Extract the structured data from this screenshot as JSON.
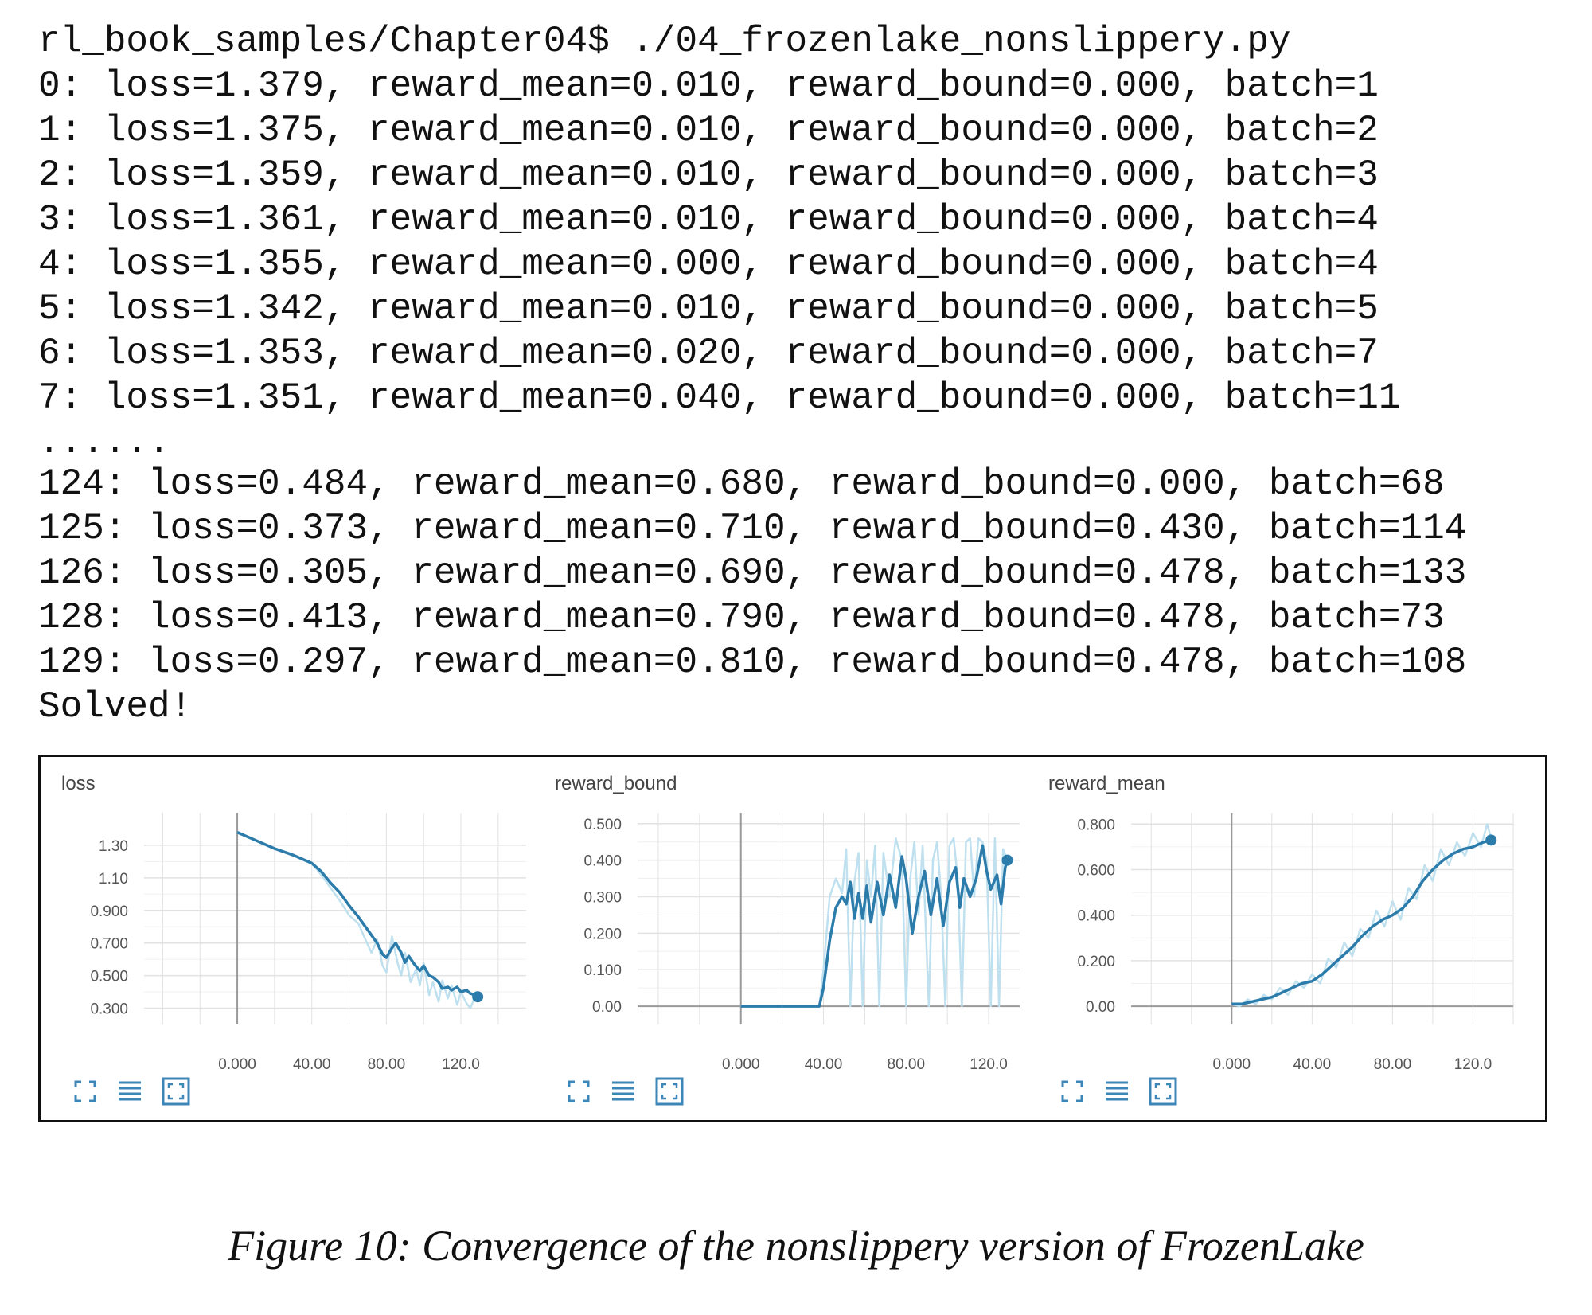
{
  "terminal": {
    "lines": [
      "rl_book_samples/Chapter04$ ./04_frozenlake_nonslippery.py",
      "0: loss=1.379, reward_mean=0.010, reward_bound=0.000, batch=1",
      "1: loss=1.375, reward_mean=0.010, reward_bound=0.000, batch=2",
      "2: loss=1.359, reward_mean=0.010, reward_bound=0.000, batch=3",
      "3: loss=1.361, reward_mean=0.010, reward_bound=0.000, batch=4",
      "4: loss=1.355, reward_mean=0.000, reward_bound=0.000, batch=4",
      "5: loss=1.342, reward_mean=0.010, reward_bound=0.000, batch=5",
      "6: loss=1.353, reward_mean=0.020, reward_bound=0.000, batch=7",
      "7: loss=1.351, reward_mean=0.040, reward_bound=0.000, batch=11",
      "......",
      "124: loss=0.484, reward_mean=0.680, reward_bound=0.000, batch=68",
      "125: loss=0.373, reward_mean=0.710, reward_bound=0.430, batch=114",
      "126: loss=0.305, reward_mean=0.690, reward_bound=0.478, batch=133",
      "128: loss=0.413, reward_mean=0.790, reward_bound=0.478, batch=73",
      "129: loss=0.297, reward_mean=0.810, reward_bound=0.478, batch=108",
      "Solved!"
    ]
  },
  "caption": "Figure 10: Convergence of the nonslippery version of FrozenLake",
  "toolbar": [
    "expand-icon",
    "list-icon",
    "fit-icon"
  ],
  "colors": {
    "line": "#2b7bab",
    "raw": "#bfe0ee",
    "grid": "#e2e2e2",
    "axis": "#9a9a9a"
  },
  "chart_data": [
    {
      "type": "line",
      "title": "loss",
      "xlim": [
        -50,
        155
      ],
      "ylim": [
        0.2,
        1.5
      ],
      "xticks": [
        0,
        40,
        80,
        120
      ],
      "xtick_labels": [
        "0.000",
        "40.00",
        "80.00",
        "120.0"
      ],
      "yticks": [
        0.3,
        0.5,
        0.7,
        0.9,
        1.1,
        1.3
      ],
      "ytick_labels": [
        "0.300",
        "0.500",
        "0.700",
        "0.900",
        "1.10",
        "1.30"
      ],
      "grid": true,
      "series": [
        {
          "x": [
            0,
            10,
            20,
            30,
            40,
            45,
            50,
            55,
            60,
            65,
            70,
            75,
            78,
            80,
            83,
            85,
            88,
            90,
            92,
            95,
            98,
            100,
            103,
            105,
            108,
            110,
            113,
            115,
            118,
            120,
            123,
            125,
            128,
            129
          ],
          "y": [
            1.38,
            1.33,
            1.28,
            1.24,
            1.19,
            1.14,
            1.07,
            1.01,
            0.93,
            0.86,
            0.78,
            0.7,
            0.63,
            0.61,
            0.67,
            0.7,
            0.64,
            0.58,
            0.62,
            0.57,
            0.53,
            0.56,
            0.5,
            0.49,
            0.46,
            0.42,
            0.43,
            0.41,
            0.43,
            0.4,
            0.41,
            0.39,
            0.38,
            0.37
          ]
        },
        {
          "x": [
            0,
            10,
            20,
            30,
            40,
            45,
            50,
            55,
            60,
            65,
            68,
            72,
            75,
            78,
            80,
            83,
            86,
            88,
            90,
            93,
            96,
            98,
            100,
            103,
            105,
            108,
            110,
            113,
            115,
            118,
            120,
            123,
            125,
            128,
            129
          ],
          "y": [
            1.38,
            1.33,
            1.28,
            1.24,
            1.19,
            1.12,
            1.04,
            0.96,
            0.87,
            0.82,
            0.74,
            0.64,
            0.72,
            0.56,
            0.52,
            0.74,
            0.58,
            0.5,
            0.64,
            0.46,
            0.54,
            0.44,
            0.58,
            0.38,
            0.46,
            0.34,
            0.47,
            0.36,
            0.44,
            0.32,
            0.4,
            0.33,
            0.3,
            0.38,
            0.37
          ]
        }
      ]
    },
    {
      "type": "line",
      "title": "reward_bound",
      "xlim": [
        -50,
        135
      ],
      "ylim": [
        -0.05,
        0.53
      ],
      "xticks": [
        0,
        40,
        80,
        120
      ],
      "xtick_labels": [
        "0.000",
        "40.00",
        "80.00",
        "120.0"
      ],
      "yticks": [
        0,
        0.1,
        0.2,
        0.3,
        0.4,
        0.5
      ],
      "ytick_labels": [
        "0.00",
        "0.100",
        "0.200",
        "0.300",
        "0.400",
        "0.500"
      ],
      "grid": true,
      "series": [
        {
          "x": [
            0,
            10,
            20,
            30,
            38,
            40,
            43,
            46,
            49,
            51,
            53,
            55,
            57,
            59,
            61,
            63,
            66,
            69,
            72,
            75,
            78,
            80,
            83,
            86,
            89,
            92,
            95,
            98,
            101,
            104,
            106,
            108,
            111,
            114,
            117,
            119,
            121,
            124,
            126,
            128,
            129
          ],
          "y": [
            0,
            0,
            0,
            0,
            0,
            0.05,
            0.18,
            0.27,
            0.3,
            0.28,
            0.34,
            0.24,
            0.31,
            0.24,
            0.33,
            0.23,
            0.34,
            0.25,
            0.36,
            0.27,
            0.41,
            0.35,
            0.2,
            0.3,
            0.37,
            0.25,
            0.35,
            0.22,
            0.34,
            0.38,
            0.27,
            0.35,
            0.3,
            0.35,
            0.44,
            0.37,
            0.32,
            0.36,
            0.28,
            0.38,
            0.4
          ]
        },
        {
          "x": [
            0,
            38,
            40,
            43,
            46,
            49,
            51,
            53,
            55,
            57,
            59,
            61,
            63,
            65,
            67,
            69,
            72,
            75,
            78,
            80,
            82,
            84,
            86,
            88,
            91,
            93,
            95,
            97,
            99,
            101,
            103,
            105,
            107,
            109,
            111,
            113,
            115,
            117,
            119,
            121,
            123,
            125,
            127,
            129
          ],
          "y": [
            0,
            0,
            0.1,
            0.3,
            0.35,
            0.31,
            0.43,
            0.0,
            0.34,
            0.42,
            0.0,
            0.4,
            0.3,
            0.44,
            0.0,
            0.42,
            0.3,
            0.46,
            0.4,
            0.0,
            0.35,
            0.45,
            0.25,
            0.44,
            0.0,
            0.4,
            0.45,
            0.3,
            0.0,
            0.44,
            0.46,
            0.35,
            0.0,
            0.45,
            0.46,
            0.3,
            0.46,
            0.45,
            0.4,
            0.0,
            0.46,
            0.0,
            0.43,
            0.4
          ]
        }
      ]
    },
    {
      "type": "line",
      "title": "reward_mean",
      "xlim": [
        -50,
        140
      ],
      "ylim": [
        -0.08,
        0.85
      ],
      "xticks": [
        0,
        40,
        80,
        120
      ],
      "xtick_labels": [
        "0.000",
        "40.00",
        "80.00",
        "120.0"
      ],
      "yticks": [
        0,
        0.2,
        0.4,
        0.6,
        0.8
      ],
      "ytick_labels": [
        "0.00",
        "0.200",
        "0.400",
        "0.600",
        "0.800"
      ],
      "grid": true,
      "series": [
        {
          "x": [
            0,
            5,
            10,
            15,
            20,
            25,
            30,
            35,
            40,
            45,
            50,
            55,
            60,
            65,
            70,
            75,
            80,
            85,
            90,
            95,
            100,
            105,
            110,
            115,
            120,
            125,
            129
          ],
          "y": [
            0.01,
            0.01,
            0.02,
            0.03,
            0.04,
            0.06,
            0.08,
            0.1,
            0.11,
            0.14,
            0.18,
            0.22,
            0.26,
            0.31,
            0.35,
            0.38,
            0.4,
            0.43,
            0.48,
            0.55,
            0.6,
            0.64,
            0.67,
            0.69,
            0.7,
            0.72,
            0.73
          ]
        },
        {
          "x": [
            0,
            4,
            8,
            12,
            16,
            20,
            24,
            28,
            32,
            36,
            40,
            44,
            48,
            52,
            56,
            60,
            64,
            68,
            72,
            76,
            80,
            84,
            88,
            92,
            96,
            100,
            104,
            108,
            112,
            116,
            120,
            124,
            127,
            129
          ],
          "y": [
            0.01,
            0.0,
            0.03,
            0.01,
            0.05,
            0.03,
            0.08,
            0.05,
            0.11,
            0.08,
            0.14,
            0.1,
            0.21,
            0.17,
            0.28,
            0.22,
            0.34,
            0.3,
            0.42,
            0.35,
            0.46,
            0.38,
            0.52,
            0.47,
            0.62,
            0.55,
            0.69,
            0.62,
            0.72,
            0.66,
            0.76,
            0.7,
            0.8,
            0.74
          ]
        }
      ]
    }
  ]
}
